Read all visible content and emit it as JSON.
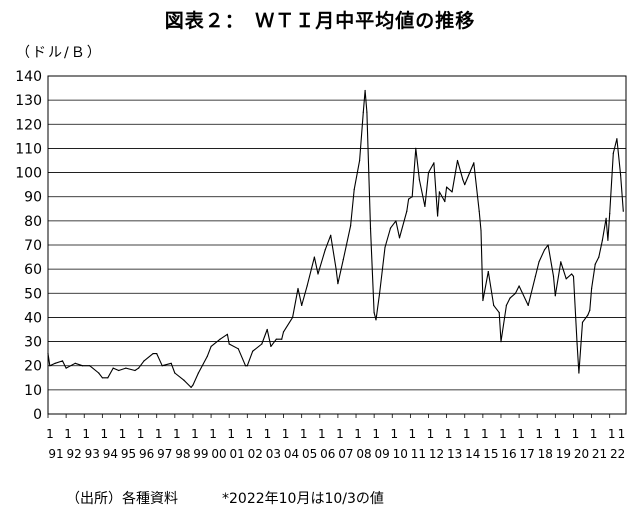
{
  "title": "図表２：　ＷＴＩ月中平均値の推移",
  "unit_label": "（ドル/Ｂ）",
  "footer": {
    "source": "（出所）各種資料",
    "note": "*2022年10月は10/3の値"
  },
  "chart_data": {
    "type": "line",
    "title": "図表２：　ＷＴＩ月中平均値の推移",
    "ylabel": "（ドル/Ｂ）",
    "ylim": [
      0,
      140
    ],
    "y_ticks": [
      0,
      10,
      20,
      30,
      40,
      50,
      60,
      70,
      80,
      90,
      100,
      110,
      120,
      130,
      140
    ],
    "xlim": [
      1991.0,
      2022.9
    ],
    "grid": "horizontal",
    "legend": "none",
    "x_tick_labels": [
      {
        "month": "1",
        "year": "91"
      },
      {
        "month": "1",
        "year": "92"
      },
      {
        "month": "1",
        "year": "93"
      },
      {
        "month": "1",
        "year": "94"
      },
      {
        "month": "1",
        "year": "95"
      },
      {
        "month": "1",
        "year": "96"
      },
      {
        "month": "1",
        "year": "97"
      },
      {
        "month": "1",
        "year": "98"
      },
      {
        "month": "1",
        "year": "99"
      },
      {
        "month": "1",
        "year": "00"
      },
      {
        "month": "1",
        "year": "01"
      },
      {
        "month": "1",
        "year": "02"
      },
      {
        "month": "1",
        "year": "03"
      },
      {
        "month": "1",
        "year": "04"
      },
      {
        "month": "1",
        "year": "05"
      },
      {
        "month": "1",
        "year": "06"
      },
      {
        "month": "1",
        "year": "07"
      },
      {
        "month": "1",
        "year": "08"
      },
      {
        "month": "1",
        "year": "09"
      },
      {
        "month": "1",
        "year": "10"
      },
      {
        "month": "1",
        "year": "11"
      },
      {
        "month": "1",
        "year": "12"
      },
      {
        "month": "1",
        "year": "13"
      },
      {
        "month": "1",
        "year": "14"
      },
      {
        "month": "1",
        "year": "15"
      },
      {
        "month": "1",
        "year": "16"
      },
      {
        "month": "1",
        "year": "17"
      },
      {
        "month": "1",
        "year": "18"
      },
      {
        "month": "1",
        "year": "19"
      },
      {
        "month": "1",
        "year": "20"
      },
      {
        "month": "1",
        "year": "21"
      },
      {
        "month": "1",
        "year": "22"
      }
    ],
    "series": [
      {
        "color": "#000000",
        "points": [
          [
            1991.0,
            25
          ],
          [
            1991.1,
            20
          ],
          [
            1991.4,
            21
          ],
          [
            1991.8,
            22
          ],
          [
            1992.0,
            19
          ],
          [
            1992.5,
            21
          ],
          [
            1992.9,
            20
          ],
          [
            1993.3,
            20
          ],
          [
            1993.8,
            17
          ],
          [
            1994.0,
            15
          ],
          [
            1994.3,
            15
          ],
          [
            1994.6,
            19
          ],
          [
            1994.9,
            18
          ],
          [
            1995.3,
            19
          ],
          [
            1995.8,
            18
          ],
          [
            1996.0,
            19
          ],
          [
            1996.3,
            22
          ],
          [
            1996.8,
            25
          ],
          [
            1997.0,
            25
          ],
          [
            1997.3,
            20
          ],
          [
            1997.8,
            21
          ],
          [
            1998.0,
            17
          ],
          [
            1998.5,
            14
          ],
          [
            1998.9,
            11
          ],
          [
            1999.0,
            12
          ],
          [
            1999.3,
            17
          ],
          [
            1999.8,
            24
          ],
          [
            2000.0,
            28
          ],
          [
            2000.5,
            31
          ],
          [
            2000.9,
            33
          ],
          [
            2001.0,
            29
          ],
          [
            2001.5,
            27
          ],
          [
            2001.9,
            20
          ],
          [
            2002.0,
            20
          ],
          [
            2002.3,
            26
          ],
          [
            2002.8,
            29
          ],
          [
            2003.1,
            35
          ],
          [
            2003.3,
            28
          ],
          [
            2003.6,
            31
          ],
          [
            2003.9,
            31
          ],
          [
            2004.0,
            34
          ],
          [
            2004.5,
            40
          ],
          [
            2004.8,
            52
          ],
          [
            2005.0,
            45
          ],
          [
            2005.3,
            53
          ],
          [
            2005.7,
            65
          ],
          [
            2005.9,
            58
          ],
          [
            2006.3,
            68
          ],
          [
            2006.6,
            74
          ],
          [
            2006.9,
            60
          ],
          [
            2007.0,
            54
          ],
          [
            2007.3,
            64
          ],
          [
            2007.7,
            78
          ],
          [
            2007.9,
            93
          ],
          [
            2008.2,
            105
          ],
          [
            2008.4,
            125
          ],
          [
            2008.5,
            134
          ],
          [
            2008.6,
            125
          ],
          [
            2008.8,
            77
          ],
          [
            2009.0,
            42
          ],
          [
            2009.1,
            39
          ],
          [
            2009.3,
            50
          ],
          [
            2009.6,
            69
          ],
          [
            2009.9,
            77
          ],
          [
            2010.2,
            80
          ],
          [
            2010.4,
            73
          ],
          [
            2010.8,
            84
          ],
          [
            2010.9,
            89
          ],
          [
            2011.1,
            90
          ],
          [
            2011.3,
            110
          ],
          [
            2011.5,
            97
          ],
          [
            2011.8,
            86
          ],
          [
            2012.0,
            100
          ],
          [
            2012.3,
            104
          ],
          [
            2012.5,
            82
          ],
          [
            2012.6,
            92
          ],
          [
            2012.9,
            88
          ],
          [
            2013.0,
            94
          ],
          [
            2013.3,
            92
          ],
          [
            2013.6,
            105
          ],
          [
            2013.9,
            97
          ],
          [
            2014.0,
            95
          ],
          [
            2014.5,
            104
          ],
          [
            2014.8,
            84
          ],
          [
            2014.9,
            76
          ],
          [
            2015.0,
            47
          ],
          [
            2015.3,
            59
          ],
          [
            2015.6,
            45
          ],
          [
            2015.9,
            42
          ],
          [
            2016.0,
            30
          ],
          [
            2016.3,
            45
          ],
          [
            2016.5,
            48
          ],
          [
            2016.8,
            50
          ],
          [
            2017.0,
            53
          ],
          [
            2017.5,
            45
          ],
          [
            2017.9,
            57
          ],
          [
            2018.1,
            63
          ],
          [
            2018.4,
            68
          ],
          [
            2018.6,
            70
          ],
          [
            2018.9,
            57
          ],
          [
            2019.0,
            49
          ],
          [
            2019.3,
            63
          ],
          [
            2019.6,
            56
          ],
          [
            2019.9,
            58
          ],
          [
            2020.0,
            57
          ],
          [
            2020.2,
            29
          ],
          [
            2020.3,
            17
          ],
          [
            2020.5,
            38
          ],
          [
            2020.8,
            41
          ],
          [
            2020.9,
            43
          ],
          [
            2021.0,
            52
          ],
          [
            2021.2,
            62
          ],
          [
            2021.4,
            65
          ],
          [
            2021.6,
            72
          ],
          [
            2021.8,
            81
          ],
          [
            2021.9,
            72
          ],
          [
            2022.0,
            83
          ],
          [
            2022.2,
            108
          ],
          [
            2022.4,
            114
          ],
          [
            2022.6,
            99
          ],
          [
            2022.75,
            84
          ]
        ]
      }
    ]
  }
}
